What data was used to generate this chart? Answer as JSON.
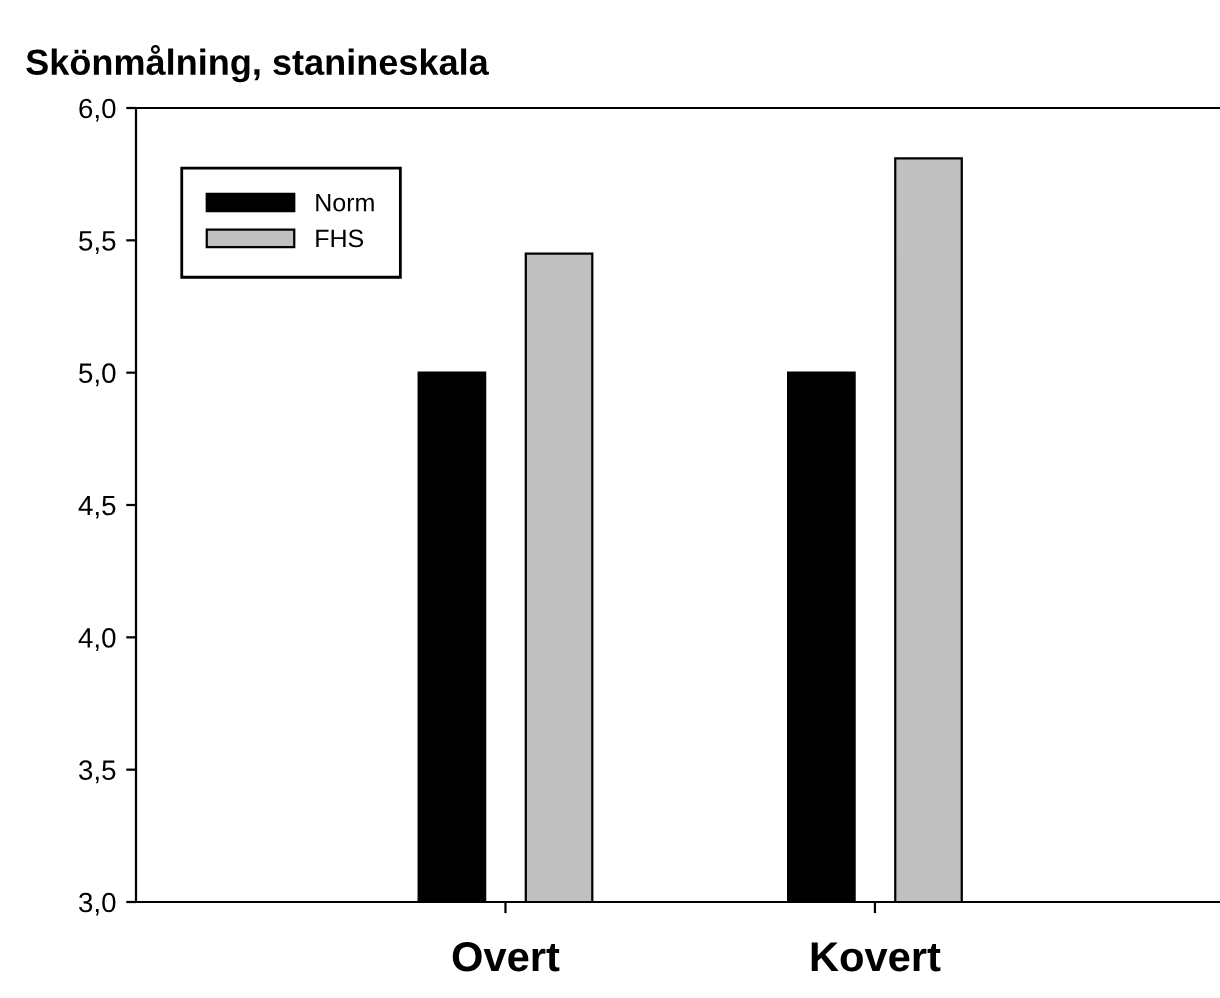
{
  "chart_data": {
    "type": "bar",
    "title": "Skönmålning, stanineskala",
    "categories": [
      "Overt",
      "Kovert"
    ],
    "series": [
      {
        "name": "Norm",
        "color": "#000000",
        "values": [
          5.0,
          5.0
        ]
      },
      {
        "name": "FHS",
        "color": "#c0c0c0",
        "values": [
          5.45,
          5.81
        ]
      }
    ],
    "ylim": [
      3.0,
      6.0
    ],
    "yticks": [
      {
        "value": 3.0,
        "label": "3,0"
      },
      {
        "value": 3.5,
        "label": "3,5"
      },
      {
        "value": 4.0,
        "label": "4,0"
      },
      {
        "value": 4.5,
        "label": "4,5"
      },
      {
        "value": 5.0,
        "label": "5,0"
      },
      {
        "value": 5.5,
        "label": "5,5"
      },
      {
        "value": 6.0,
        "label": "6,0"
      }
    ],
    "grid": false,
    "legend": "top left"
  }
}
